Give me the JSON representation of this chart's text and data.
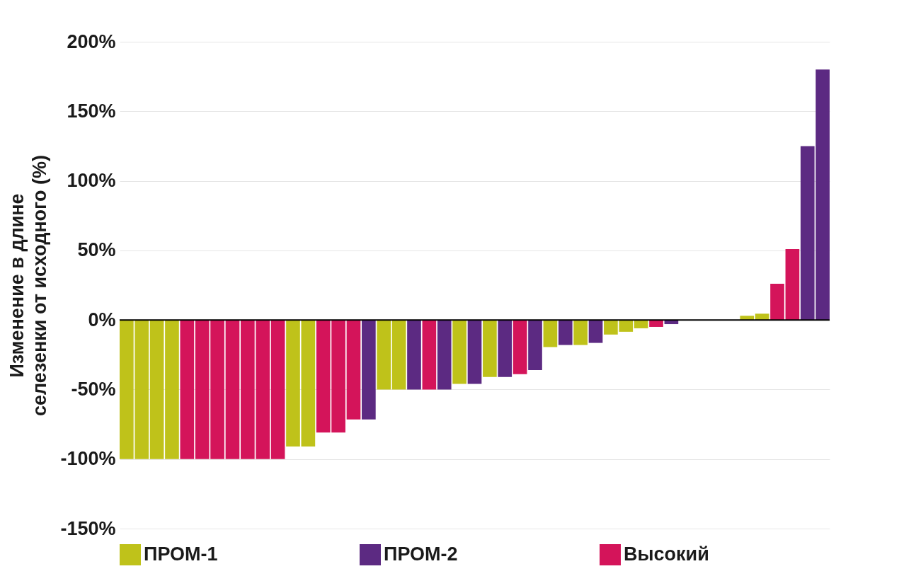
{
  "chart_data": {
    "type": "bar",
    "ylabel": "Изменение в длине селезенки от исходного (%)",
    "categories": [
      null,
      null,
      null,
      null,
      null,
      null,
      null,
      null,
      null,
      null,
      null,
      null,
      null,
      null,
      null,
      null,
      null,
      null,
      null,
      null,
      null,
      null,
      null,
      null,
      null,
      null,
      null,
      null,
      null,
      null,
      null,
      null,
      null,
      null,
      null,
      null,
      null,
      null,
      null,
      null,
      null,
      null,
      null,
      null,
      null,
      null,
      null
    ],
    "series": [
      {
        "name": "ПРОМ-1",
        "color": "#bfc21a",
        "values": [
          -100,
          -100,
          -100,
          -100,
          null,
          null,
          null,
          null,
          null,
          null,
          null,
          -91,
          -91,
          null,
          null,
          null,
          null,
          -50,
          -50,
          null,
          null,
          null,
          -46,
          null,
          -41,
          null,
          null,
          null,
          -19.5,
          null,
          -18,
          null,
          -10.5,
          -8.5,
          -6,
          null,
          null,
          null,
          null,
          null,
          null,
          3,
          4.5,
          null,
          null,
          null,
          null
        ]
      },
      {
        "name": "ПРОМ-2",
        "color": "#5c2a82",
        "values": [
          null,
          null,
          null,
          null,
          null,
          null,
          null,
          null,
          null,
          null,
          null,
          null,
          null,
          null,
          null,
          null,
          -71.5,
          null,
          null,
          -50,
          null,
          -50,
          null,
          -46,
          null,
          -41,
          null,
          -36,
          null,
          -18,
          null,
          -16.5,
          null,
          null,
          null,
          null,
          -3,
          null,
          null,
          null,
          null,
          null,
          null,
          null,
          null,
          125,
          180
        ]
      },
      {
        "name": "Высокий",
        "color": "#d4145a",
        "values": [
          null,
          null,
          null,
          null,
          -100,
          -100,
          -100,
          -100,
          -100,
          -100,
          -100,
          null,
          null,
          -81,
          -81,
          -71.5,
          null,
          null,
          null,
          null,
          -50,
          null,
          null,
          null,
          null,
          null,
          -39,
          null,
          null,
          null,
          null,
          null,
          null,
          null,
          null,
          -5,
          null,
          null,
          null,
          null,
          null,
          null,
          null,
          26,
          51,
          null,
          null
        ]
      }
    ],
    "ylim": [
      -150,
      200
    ],
    "yticks": [
      {
        "value": -150,
        "label": "-150%"
      },
      {
        "value": -100,
        "label": "-100%"
      },
      {
        "value": -50,
        "label": "-50%"
      },
      {
        "value": 0,
        "label": "0%"
      },
      {
        "value": 50,
        "label": "50%"
      },
      {
        "value": 100,
        "label": "100%"
      },
      {
        "value": 150,
        "label": "150%"
      },
      {
        "value": 200,
        "label": "200%"
      }
    ],
    "ref_lines": [
      {
        "axis": "y",
        "value": 0,
        "color": "#000000"
      }
    ],
    "grid": "y",
    "legend": "bottom"
  }
}
